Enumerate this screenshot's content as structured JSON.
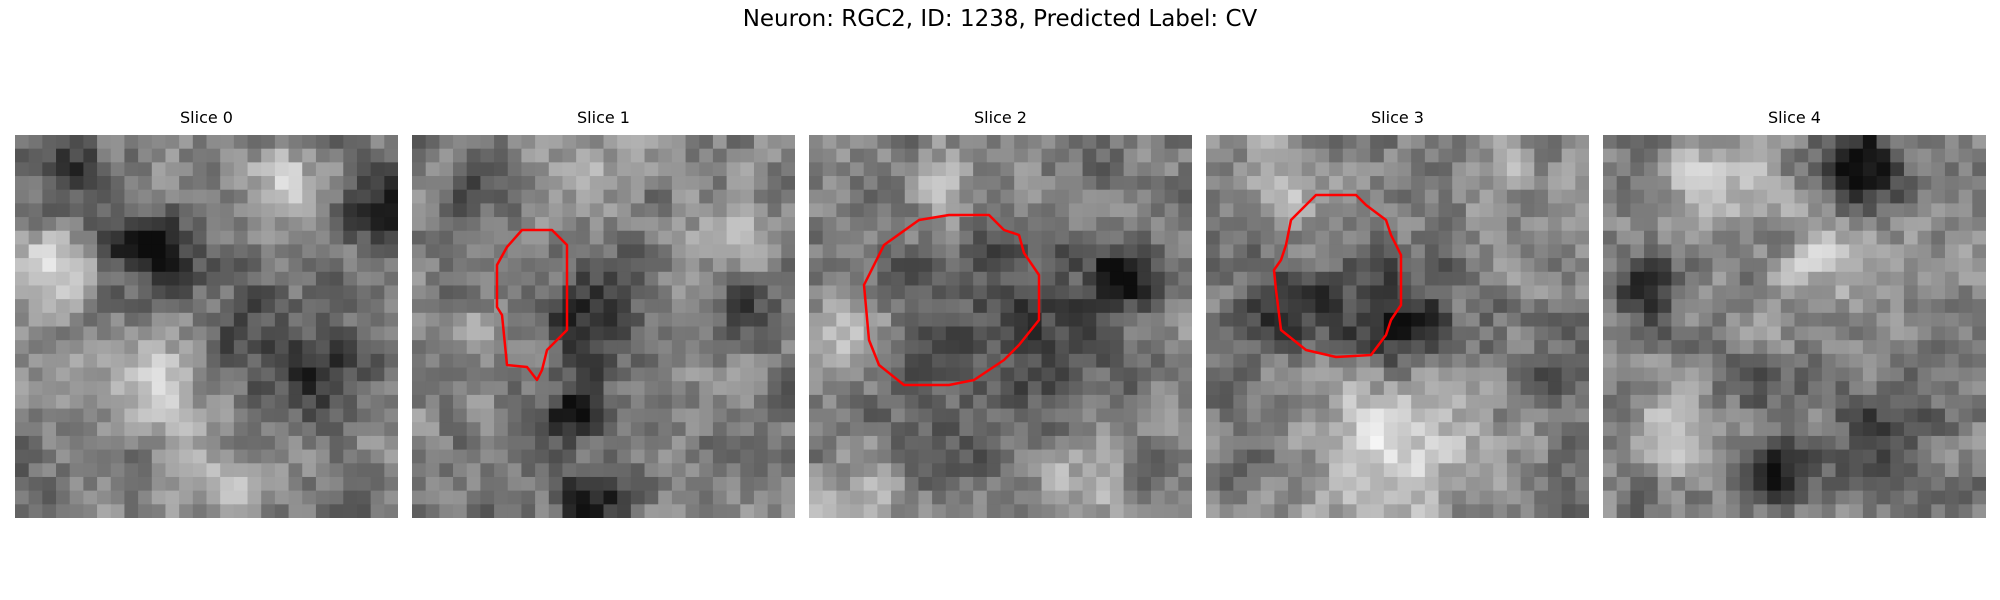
{
  "title": "Neuron: RGC2, ID: 1238, Predicted Label: CV",
  "contour_color": "#ff0000",
  "slices": [
    {
      "label": "Slice 0",
      "has_contour": false
    },
    {
      "label": "Slice 1",
      "has_contour": true
    },
    {
      "label": "Slice 2",
      "has_contour": true
    },
    {
      "label": "Slice 3",
      "has_contour": true
    },
    {
      "label": "Slice 4",
      "has_contour": false
    }
  ]
}
